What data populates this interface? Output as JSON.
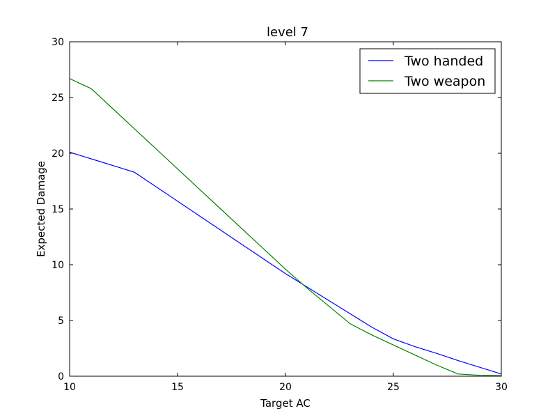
{
  "chart_data": {
    "type": "line",
    "title": "level 7",
    "xlabel": "Target AC",
    "ylabel": "Expected Damage",
    "xlim": [
      10,
      30
    ],
    "ylim": [
      0,
      30
    ],
    "xticks": [
      10,
      15,
      20,
      25,
      30
    ],
    "yticks": [
      0,
      5,
      10,
      15,
      20,
      25,
      30
    ],
    "grid": false,
    "legend": "top-right",
    "series": [
      {
        "name": "Two handed",
        "color": "#0000ff",
        "x": [
          10,
          11,
          12,
          13,
          14,
          15,
          16,
          17,
          18,
          19,
          20,
          21,
          22,
          23,
          24,
          25,
          26,
          27,
          28,
          29,
          30
        ],
        "y": [
          20.1,
          19.5,
          18.9,
          18.3,
          17.0,
          15.7,
          14.4,
          13.1,
          11.8,
          10.5,
          9.2,
          8.0,
          6.8,
          5.6,
          4.4,
          3.35,
          2.65,
          2.05,
          1.4,
          0.8,
          0.2
        ]
      },
      {
        "name": "Two weapon",
        "color": "#008000",
        "x": [
          10,
          11,
          12,
          13,
          14,
          15,
          16,
          17,
          18,
          19,
          20,
          21,
          22,
          23,
          24,
          25,
          26,
          27,
          28,
          29,
          30
        ],
        "y": [
          26.7,
          25.8,
          24.0,
          22.2,
          20.4,
          18.6,
          16.8,
          15.0,
          13.2,
          11.4,
          9.6,
          7.9,
          6.3,
          4.7,
          3.7,
          2.8,
          1.9,
          1.0,
          0.2,
          0.08,
          0.05
        ]
      }
    ]
  }
}
